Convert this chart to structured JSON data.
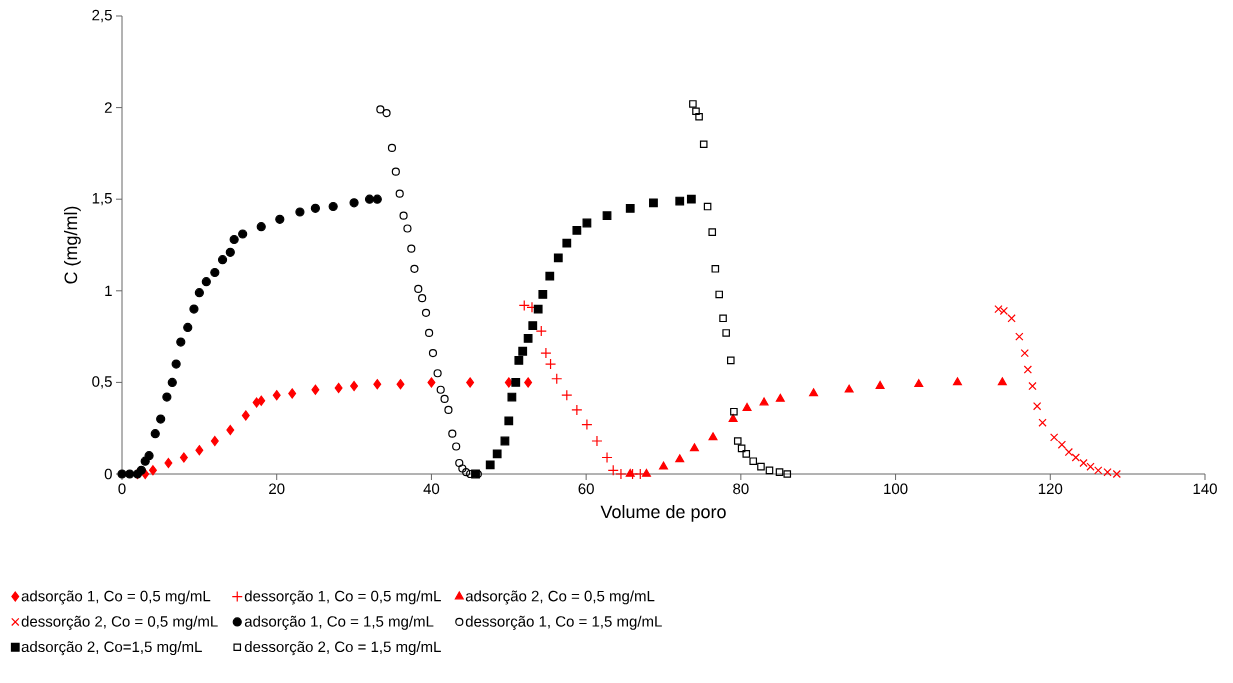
{
  "chart_data": {
    "type": "scatter",
    "xlabel": "Volume de poro",
    "ylabel": "C (mg/ml)",
    "xlim": [
      0,
      140
    ],
    "ylim": [
      0,
      2.5
    ],
    "xticks": [
      0,
      20,
      40,
      60,
      80,
      100,
      120,
      140
    ],
    "yticks": [
      0,
      {
        "value": 0.5,
        "label": "0,5"
      },
      1,
      {
        "value": 1.5,
        "label": "1,5"
      },
      2,
      {
        "value": 2.5,
        "label": "2,5"
      }
    ],
    "grid": false,
    "legend": "bottom",
    "series": [
      {
        "name": "adsorção 1, Co = 0,5 mg/mL",
        "color": "#ff0000",
        "marker": "diamond",
        "x": [
          2,
          3,
          4,
          6,
          8,
          10,
          12,
          14,
          16,
          17.4,
          18,
          20,
          22,
          25,
          28,
          30,
          33,
          36,
          40,
          45,
          50,
          52.5
        ],
        "values": [
          0,
          0,
          0.02,
          0.06,
          0.09,
          0.13,
          0.18,
          0.24,
          0.32,
          0.39,
          0.4,
          0.43,
          0.44,
          0.46,
          0.47,
          0.48,
          0.49,
          0.49,
          0.5,
          0.5,
          0.5,
          0.5
        ]
      },
      {
        "name": "dessorção 1, Co = 0,5 mg/mL",
        "color": "#ff0000",
        "marker": "plus",
        "x": [
          52,
          53,
          54.2,
          54.8,
          55.4,
          56.2,
          57.5,
          58.8,
          60.1,
          61.4,
          62.7,
          63.5,
          64.5,
          66,
          67
        ],
        "values": [
          0.92,
          0.91,
          0.78,
          0.66,
          0.6,
          0.52,
          0.43,
          0.35,
          0.27,
          0.18,
          0.09,
          0.02,
          0,
          0,
          0
        ]
      },
      {
        "name": "adsorção 2, Co = 0,5 mg/mL",
        "color": "#ff0000",
        "marker": "triangle",
        "x": [
          65.7,
          67.8,
          70,
          72.1,
          74,
          76.4,
          79,
          80.8,
          83,
          85.1,
          89.4,
          94,
          98,
          103,
          108,
          113.8
        ],
        "values": [
          0,
          0,
          0.04,
          0.08,
          0.14,
          0.2,
          0.3,
          0.36,
          0.39,
          0.41,
          0.44,
          0.46,
          0.48,
          0.49,
          0.5,
          0.5
        ]
      },
      {
        "name": "dessorção 2, Co = 0,5 mg/mL",
        "color": "#ff0000",
        "marker": "cross",
        "x": [
          113.3,
          114,
          115,
          116,
          116.7,
          117.1,
          117.7,
          118.3,
          119,
          120.5,
          121.5,
          122.4,
          123.3,
          124.3,
          125.2,
          126.2,
          127.4,
          128.6
        ],
        "values": [
          0.9,
          0.89,
          0.85,
          0.75,
          0.66,
          0.57,
          0.48,
          0.37,
          0.28,
          0.2,
          0.16,
          0.12,
          0.09,
          0.06,
          0.04,
          0.02,
          0.01,
          0
        ]
      },
      {
        "name": "adsorção 1, Co = 1,5 mg/mL",
        "color": "#000000",
        "marker": "circle",
        "x": [
          0,
          1,
          2,
          2.5,
          3,
          3.5,
          4.3,
          5,
          5.8,
          6.5,
          7,
          7.6,
          8.5,
          9.3,
          10,
          10.9,
          12,
          13,
          14,
          14.5,
          15.6,
          18,
          20.4,
          23,
          25,
          27.3,
          30,
          32,
          33
        ],
        "values": [
          0,
          0,
          0,
          0.02,
          0.07,
          0.1,
          0.22,
          0.3,
          0.42,
          0.5,
          0.6,
          0.72,
          0.8,
          0.9,
          0.99,
          1.05,
          1.1,
          1.17,
          1.21,
          1.28,
          1.31,
          1.35,
          1.39,
          1.43,
          1.45,
          1.46,
          1.48,
          1.5,
          1.5
        ]
      },
      {
        "name": "dessorção 1, Co = 1,5 mg/mL",
        "color": "#000000",
        "marker": "circle-open",
        "x": [
          33.4,
          34.2,
          34.9,
          35.4,
          35.9,
          36.4,
          36.9,
          37.4,
          37.8,
          38.3,
          38.8,
          39.3,
          39.7,
          40.2,
          40.8,
          41.2,
          41.7,
          42.2,
          42.7,
          43.2,
          43.6,
          44,
          44.5,
          45,
          46
        ],
        "values": [
          1.99,
          1.97,
          1.78,
          1.65,
          1.53,
          1.41,
          1.34,
          1.23,
          1.12,
          1.01,
          0.96,
          0.88,
          0.77,
          0.66,
          0.55,
          0.46,
          0.41,
          0.35,
          0.22,
          0.15,
          0.06,
          0.03,
          0.01,
          0,
          0
        ]
      },
      {
        "name": "adsorção 2, Co=1,5 mg/mL",
        "color": "#000000",
        "marker": "square",
        "x": [
          45.7,
          47.6,
          48.5,
          49.5,
          50,
          50.4,
          50.9,
          51.3,
          51.8,
          52.5,
          53.1,
          53.8,
          54.4,
          55.3,
          56.4,
          57.5,
          58.8,
          60.1,
          62.7,
          65.7,
          68.7,
          72.1,
          73.6
        ],
        "values": [
          0,
          0.05,
          0.11,
          0.18,
          0.29,
          0.42,
          0.5,
          0.62,
          0.67,
          0.74,
          0.81,
          0.9,
          0.98,
          1.08,
          1.18,
          1.26,
          1.33,
          1.37,
          1.41,
          1.45,
          1.48,
          1.49,
          1.5
        ]
      },
      {
        "name": "dessorção 2, Co = 1,5 mg/mL",
        "color": "#000000",
        "marker": "square-open",
        "x": [
          73.8,
          74.2,
          74.6,
          75.2,
          75.7,
          76.3,
          76.7,
          77.2,
          77.7,
          78.1,
          78.7,
          79.1,
          79.6,
          80.1,
          80.7,
          81.6,
          82.6,
          83.7,
          85,
          86
        ],
        "values": [
          2.02,
          1.98,
          1.95,
          1.8,
          1.46,
          1.32,
          1.12,
          0.98,
          0.85,
          0.77,
          0.62,
          0.34,
          0.18,
          0.14,
          0.11,
          0.07,
          0.04,
          0.02,
          0.01,
          0
        ]
      }
    ]
  }
}
